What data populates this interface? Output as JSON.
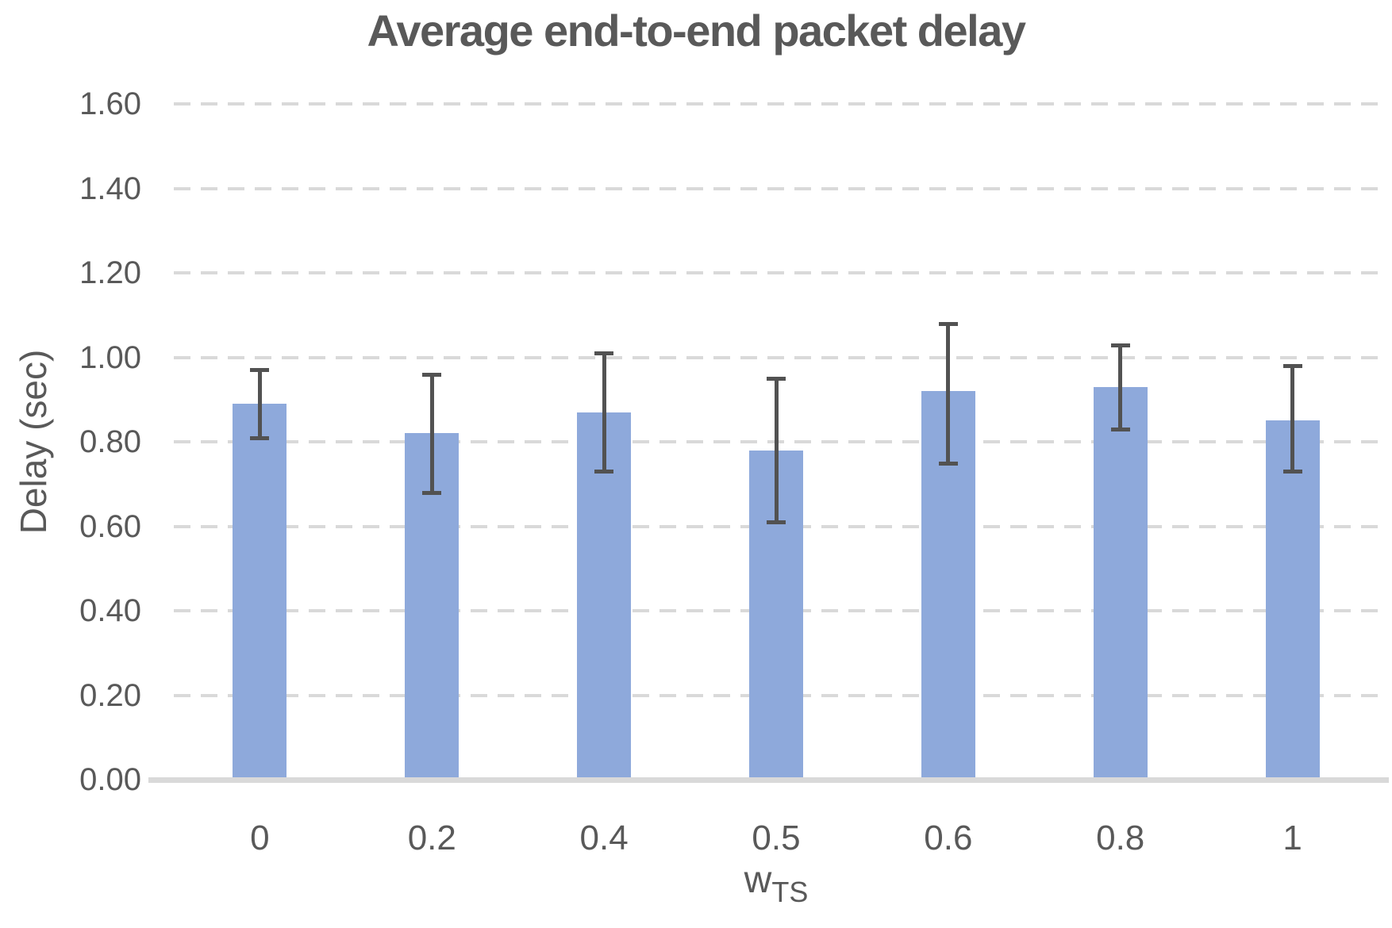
{
  "chart_data": {
    "type": "bar",
    "title": "Average end-to-end packet delay",
    "ylabel": "Delay (sec)",
    "xlabel_main": "w",
    "xlabel_sub": "TS",
    "categories": [
      "0",
      "0.2",
      "0.4",
      "0.5",
      "0.6",
      "0.8",
      "1"
    ],
    "values": [
      0.89,
      0.82,
      0.87,
      0.78,
      0.92,
      0.93,
      0.85
    ],
    "error_high": [
      0.97,
      0.96,
      1.01,
      0.95,
      1.08,
      1.03,
      0.98
    ],
    "error_low": [
      0.81,
      0.68,
      0.73,
      0.61,
      0.75,
      0.83,
      0.73
    ],
    "ylim": [
      0,
      1.6
    ],
    "yticks": [
      {
        "label": "0.00",
        "value": 0.0
      },
      {
        "label": "0.20",
        "value": 0.2
      },
      {
        "label": "0.40",
        "value": 0.4
      },
      {
        "label": "0.60",
        "value": 0.6
      },
      {
        "label": "0.80",
        "value": 0.8
      },
      {
        "label": "1.00",
        "value": 1.0
      },
      {
        "label": "1.20",
        "value": 1.2
      },
      {
        "label": "1.40",
        "value": 1.4
      },
      {
        "label": "1.60",
        "value": 1.6
      }
    ],
    "grid": "horizontal-dashed",
    "legend": "none",
    "colors": {
      "bar": "#8EA9DB",
      "gridline": "#D9D9D9",
      "axis_line": "#D9D9D9",
      "text": "#595959",
      "error_bar": "#525252"
    }
  }
}
